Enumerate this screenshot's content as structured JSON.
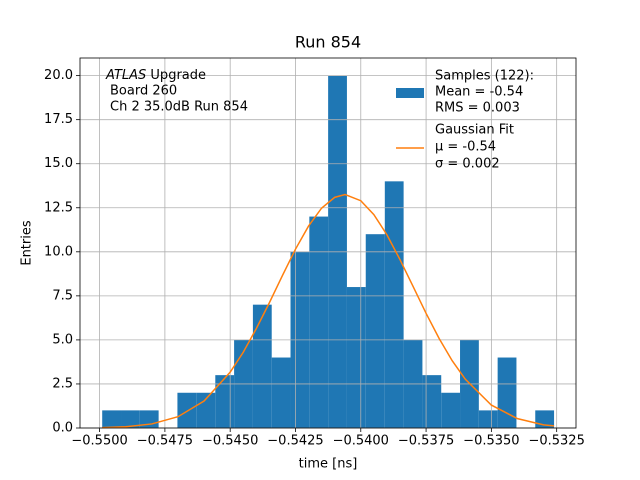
{
  "chart_data": {
    "type": "histogram",
    "title": "Run 854",
    "xlabel": "time [ns]",
    "ylabel": "Entries",
    "annotation": {
      "italic": "ATLAS",
      "lines": [
        "Upgrade",
        "Board 260",
        "Ch 2 35.0dB  Run 854"
      ]
    },
    "bins": [
      -0.5499,
      -0.54918,
      -0.54846,
      -0.54774,
      -0.54702,
      -0.5463,
      -0.54557,
      -0.54485,
      -0.54413,
      -0.54341,
      -0.54269,
      -0.54197,
      -0.54125,
      -0.54053,
      -0.53981,
      -0.53908,
      -0.53836,
      -0.53764,
      -0.53692,
      -0.5362,
      -0.53548,
      -0.53476,
      -0.53404,
      -0.53332,
      -0.5326
    ],
    "counts": [
      1,
      1,
      1,
      0,
      2,
      2,
      3,
      5,
      7,
      4,
      10,
      12,
      20,
      8,
      11,
      14,
      5,
      3,
      2,
      5,
      1,
      4,
      0,
      1
    ],
    "name": [
      "Samples (122):",
      "Mean = -0.54",
      "RMS = 0.003"
    ],
    "color": "#1f77b4",
    "fit": {
      "type": "line",
      "name": [
        "Gaussian Fit",
        "μ = -0.54",
        "σ = 0.002"
      ],
      "color": "#ff7f0e",
      "x": [
        -0.5499,
        -0.549,
        -0.548,
        -0.547,
        -0.546,
        -0.545,
        -0.5445,
        -0.544,
        -0.5435,
        -0.543,
        -0.5425,
        -0.542,
        -0.5415,
        -0.541,
        -0.5406,
        -0.54,
        -0.5395,
        -0.539,
        -0.5385,
        -0.538,
        -0.5375,
        -0.537,
        -0.5365,
        -0.536,
        -0.535,
        -0.534,
        -0.533,
        -0.5326
      ],
      "values": [
        0.02,
        0.07,
        0.23,
        0.64,
        1.53,
        3.17,
        4.3,
        5.64,
        7.11,
        8.65,
        10.15,
        11.46,
        12.48,
        13.09,
        13.25,
        12.9,
        12.11,
        10.97,
        9.56,
        8.04,
        6.51,
        5.08,
        3.82,
        2.77,
        1.3,
        0.53,
        0.18,
        0.12
      ]
    },
    "xlim": [
      -0.55075,
      -0.53176
    ],
    "ylim": [
      0,
      21
    ],
    "xticks": [
      {
        "value": -0.55,
        "label": "−0.5500"
      },
      {
        "value": -0.5475,
        "label": "−0.5475"
      },
      {
        "value": -0.545,
        "label": "−0.5450"
      },
      {
        "value": -0.5425,
        "label": "−0.5425"
      },
      {
        "value": -0.54,
        "label": "−0.5400"
      },
      {
        "value": -0.5375,
        "label": "−0.5375"
      },
      {
        "value": -0.535,
        "label": "−0.5350"
      },
      {
        "value": -0.5325,
        "label": "−0.5325"
      }
    ],
    "yticks": [
      {
        "value": 0,
        "label": "0.0"
      },
      2.5,
      {
        "value": 5,
        "label": "5.0"
      },
      7.5,
      {
        "value": 10,
        "label": "10.0"
      },
      12.5,
      {
        "value": 15,
        "label": "15.0"
      },
      17.5,
      {
        "value": 20,
        "label": "20.0"
      }
    ],
    "grid": true,
    "legend": "upper right"
  }
}
